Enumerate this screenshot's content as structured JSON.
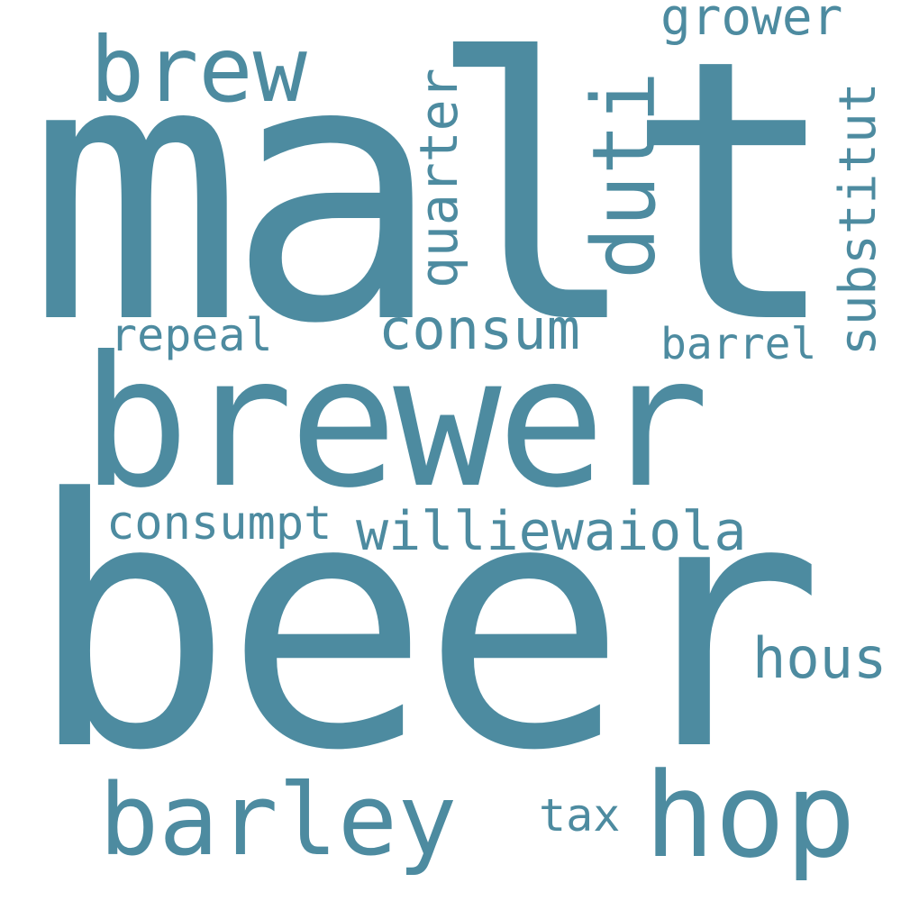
{
  "cloud": {
    "color": "#4d8ba0",
    "background": "#ffffff",
    "words": {
      "malt": "malt",
      "beer": "beer",
      "brewer": "brewer",
      "brew": "brew",
      "barley": "barley",
      "hop": "hop",
      "hous": "hous",
      "tax": "tax",
      "williewaiola": "williewaiola",
      "consumpt": "consumpt",
      "repeal": "repeal",
      "consum": "consum",
      "barrel": "barrel",
      "grower": "grower",
      "duti": "duti",
      "quarter": "quarter",
      "substitut": "substitut"
    }
  }
}
